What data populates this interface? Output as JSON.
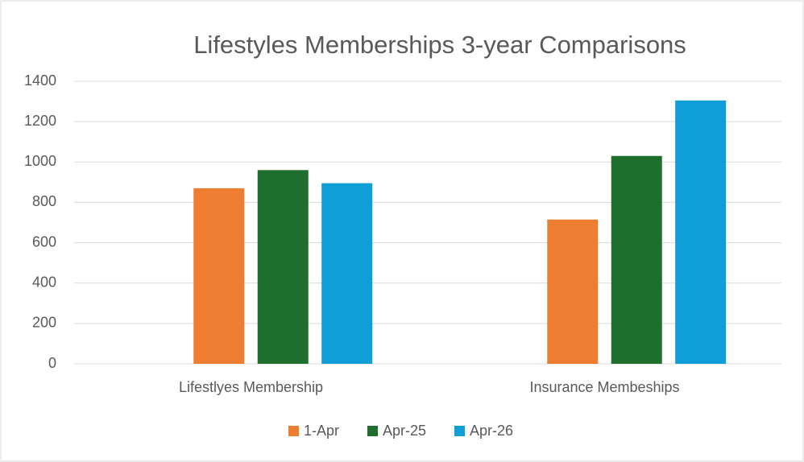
{
  "chart_data": {
    "type": "bar",
    "title": "Lifestyles Memberships 3-year Comparisons",
    "categories": [
      "Lifestlyes Membership",
      "Insurance Membeships"
    ],
    "series": [
      {
        "name": "1-Apr",
        "color": "#ed7d31",
        "values": [
          870,
          715
        ]
      },
      {
        "name": "Apr-25",
        "color": "#1e6e2e",
        "values": [
          960,
          1030
        ]
      },
      {
        "name": "Apr-26",
        "color": "#0f9ed5",
        "values": [
          895,
          1305
        ]
      }
    ],
    "ylim": [
      0,
      1400
    ],
    "yticks": [
      0,
      200,
      400,
      600,
      800,
      1000,
      1200,
      1400
    ],
    "grid": true,
    "legend": "bottom"
  }
}
